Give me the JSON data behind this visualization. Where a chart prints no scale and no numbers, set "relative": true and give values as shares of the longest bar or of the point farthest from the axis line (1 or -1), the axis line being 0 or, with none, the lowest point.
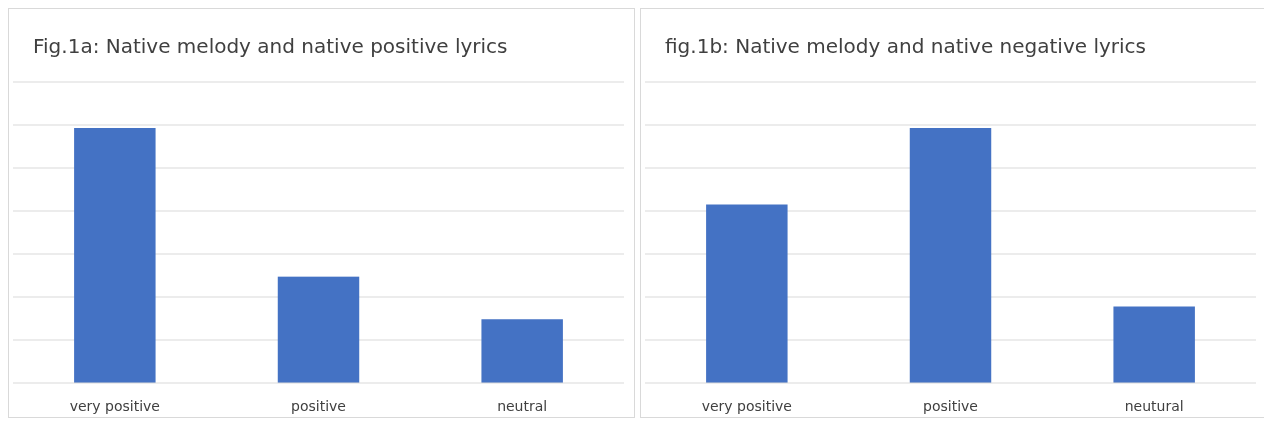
{
  "chart_data": [
    {
      "type": "bar",
      "title": "Fig.1a: Native melody and native positive lyrics",
      "categories": [
        "very positive",
        "positive",
        "neutral"
      ],
      "values": [
        1,
        0.417,
        0.25
      ],
      "color": "#4472c4",
      "relative": true,
      "grid": true
    },
    {
      "type": "bar",
      "title": "fig.1b: Native melody and native negative lyrics",
      "categories": [
        "very positive",
        "positive",
        "neutural"
      ],
      "values": [
        0.7,
        1,
        0.3
      ],
      "color": "#4472c4",
      "relative": true,
      "grid": true
    }
  ]
}
